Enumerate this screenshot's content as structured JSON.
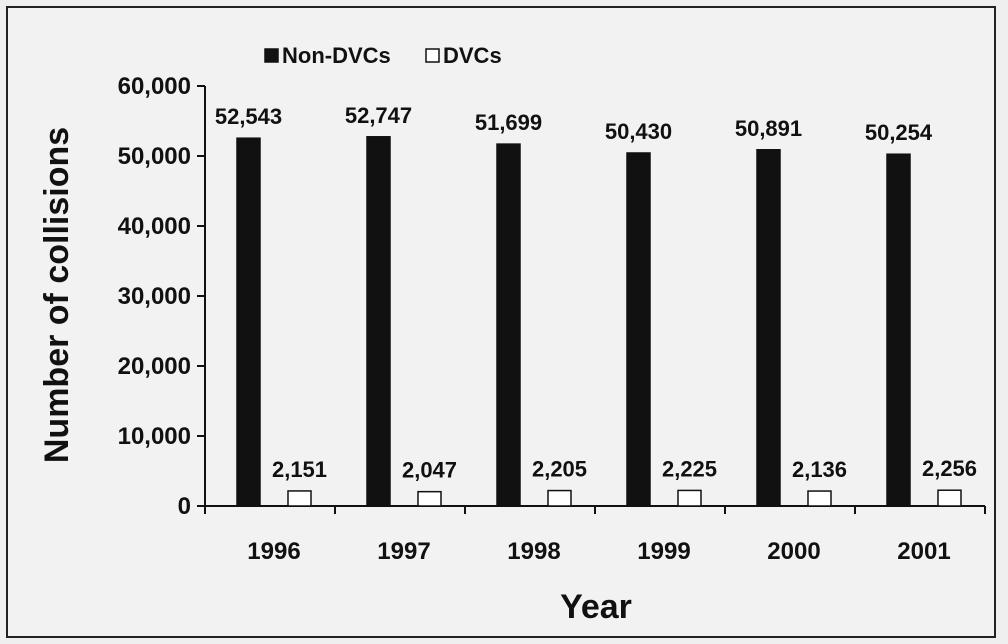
{
  "chart_data": {
    "type": "bar",
    "categories": [
      "1996",
      "1997",
      "1998",
      "1999",
      "2000",
      "2001"
    ],
    "series": [
      {
        "name": "Non-DVCs",
        "values": [
          52543,
          52747,
          51699,
          50430,
          50891,
          50254
        ],
        "labels": [
          "52,543",
          "52,747",
          "51,699",
          "50,430",
          "50,891",
          "50,254"
        ],
        "color": "#111111"
      },
      {
        "name": "DVCs",
        "values": [
          2151,
          2047,
          2205,
          2225,
          2136,
          2256
        ],
        "labels": [
          "2,151",
          "2,047",
          "2,205",
          "2,225",
          "2,136",
          "2,256"
        ],
        "color": "#ffffff"
      }
    ],
    "xlabel": "Year",
    "ylabel": "Number of collisions",
    "ylim": [
      0,
      60000
    ],
    "yticks": [
      0,
      10000,
      20000,
      30000,
      40000,
      50000,
      60000
    ],
    "ytick_labels": [
      "0",
      "10,000",
      "20,000",
      "30,000",
      "40,000",
      "50,000",
      "60,000"
    ],
    "legend_position": "top-left",
    "grid": false
  }
}
